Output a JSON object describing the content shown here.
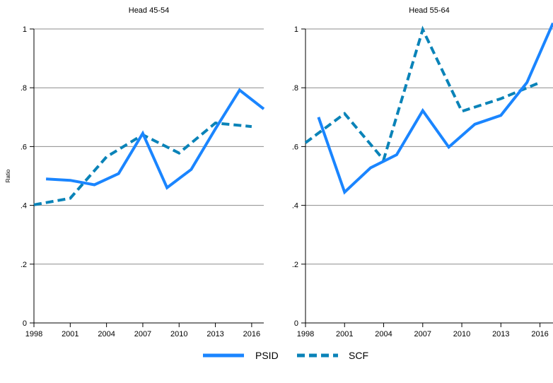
{
  "colors": {
    "psid": "#1a85ff",
    "scf": "#0a83b8",
    "grid": "#8c8c8c"
  },
  "ylabel": "Ratio",
  "legend": {
    "psid": "PSID",
    "scf": "SCF"
  },
  "chart_data": [
    {
      "type": "line",
      "title": "Head 45-54",
      "xlim": [
        1998,
        2017
      ],
      "ylim": [
        0,
        1
      ],
      "xticks": [
        1998,
        2001,
        2004,
        2007,
        2010,
        2013,
        2016
      ],
      "yticks": [
        0,
        0.2,
        0.4,
        0.6,
        0.8,
        1
      ],
      "ytick_labels": [
        "0",
        ".2",
        ".4",
        ".6",
        ".8",
        "1"
      ],
      "grid": true,
      "series": [
        {
          "name": "PSID",
          "style": "solid",
          "x": [
            1999,
            2001,
            2003,
            2005,
            2007,
            2009,
            2011,
            2013,
            2015,
            2017
          ],
          "y": [
            0.49,
            0.485,
            0.47,
            0.508,
            0.645,
            0.46,
            0.522,
            0.66,
            0.792,
            0.728
          ]
        },
        {
          "name": "SCF",
          "style": "dashed",
          "x": [
            1998,
            2001,
            2004,
            2007,
            2010,
            2013,
            2016
          ],
          "y": [
            0.402,
            0.424,
            0.565,
            0.64,
            0.578,
            0.68,
            0.668
          ]
        }
      ]
    },
    {
      "type": "line",
      "title": "Head 55-64",
      "xlim": [
        1998,
        2017
      ],
      "ylim": [
        0,
        1
      ],
      "xticks": [
        1998,
        2001,
        2004,
        2007,
        2010,
        2013,
        2016
      ],
      "yticks": [
        0,
        0.2,
        0.4,
        0.6,
        0.8,
        1
      ],
      "ytick_labels": [
        "0",
        ".2",
        ".4",
        ".6",
        ".8",
        "1"
      ],
      "grid": true,
      "series": [
        {
          "name": "PSID",
          "style": "solid",
          "x": [
            1999,
            2001,
            2003,
            2005,
            2007,
            2009,
            2011,
            2013,
            2015,
            2017
          ],
          "y": [
            0.7,
            0.445,
            0.528,
            0.572,
            0.722,
            0.598,
            0.676,
            0.706,
            0.818,
            1.02
          ]
        },
        {
          "name": "SCF",
          "style": "dashed",
          "x": [
            1998,
            2001,
            2004,
            2007,
            2010,
            2013,
            2016
          ],
          "y": [
            0.613,
            0.712,
            0.555,
            0.998,
            0.72,
            0.763,
            0.818
          ]
        }
      ]
    }
  ]
}
